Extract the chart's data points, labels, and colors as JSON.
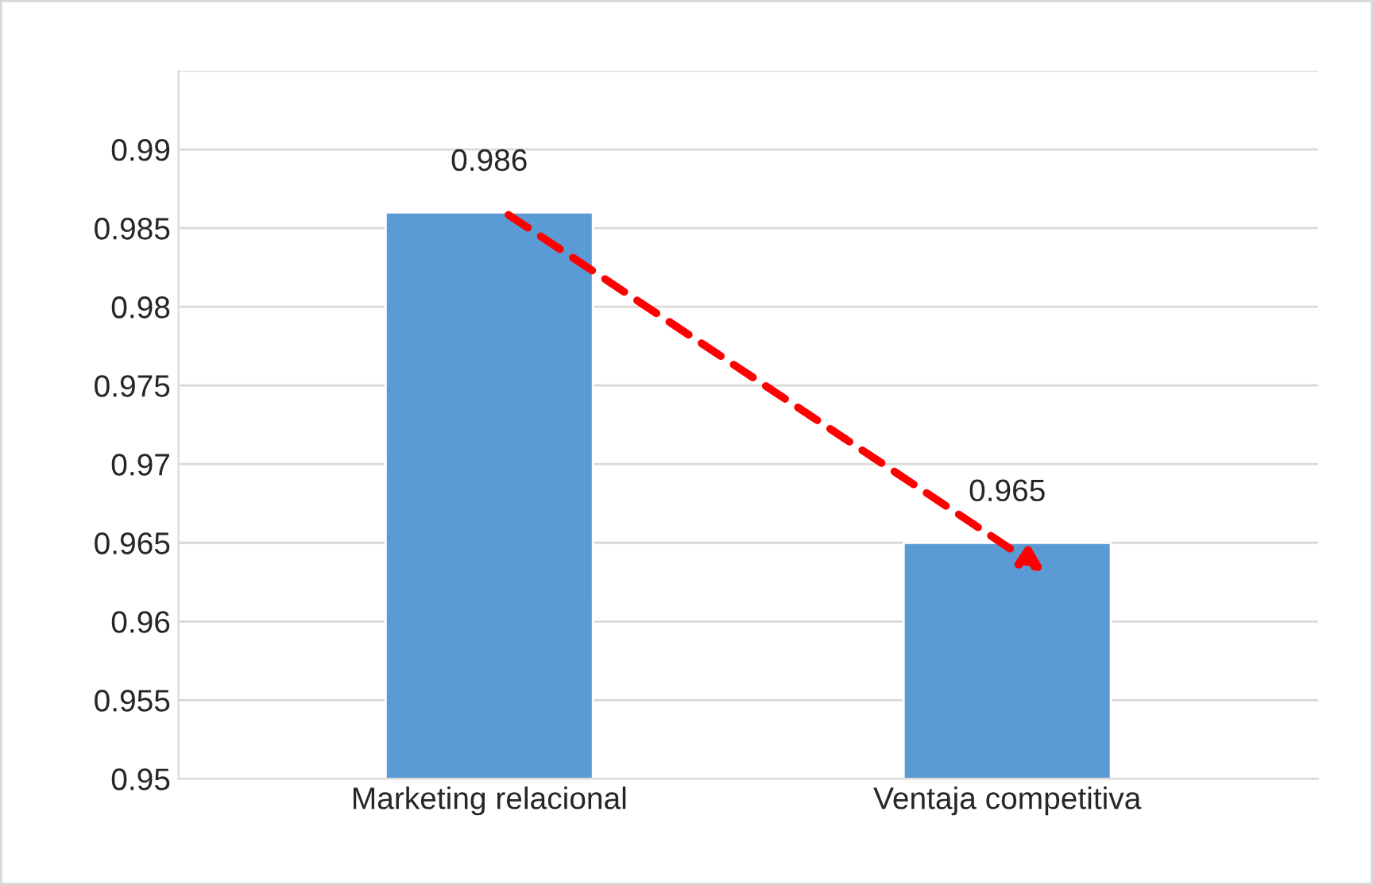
{
  "chart_data": {
    "type": "bar",
    "categories": [
      "Marketing relacional",
      "Ventaja competitiva"
    ],
    "values": [
      0.986,
      0.965
    ],
    "color": "#5b9bd5",
    "ylim": [
      0.95,
      0.995
    ],
    "yticks": [
      0.95,
      0.955,
      0.96,
      0.965,
      0.97,
      0.975,
      0.98,
      0.985,
      0.99,
      {
        "value": 0.995,
        "label": null
      }
    ],
    "grid": "y",
    "data_labels": true
  }
}
